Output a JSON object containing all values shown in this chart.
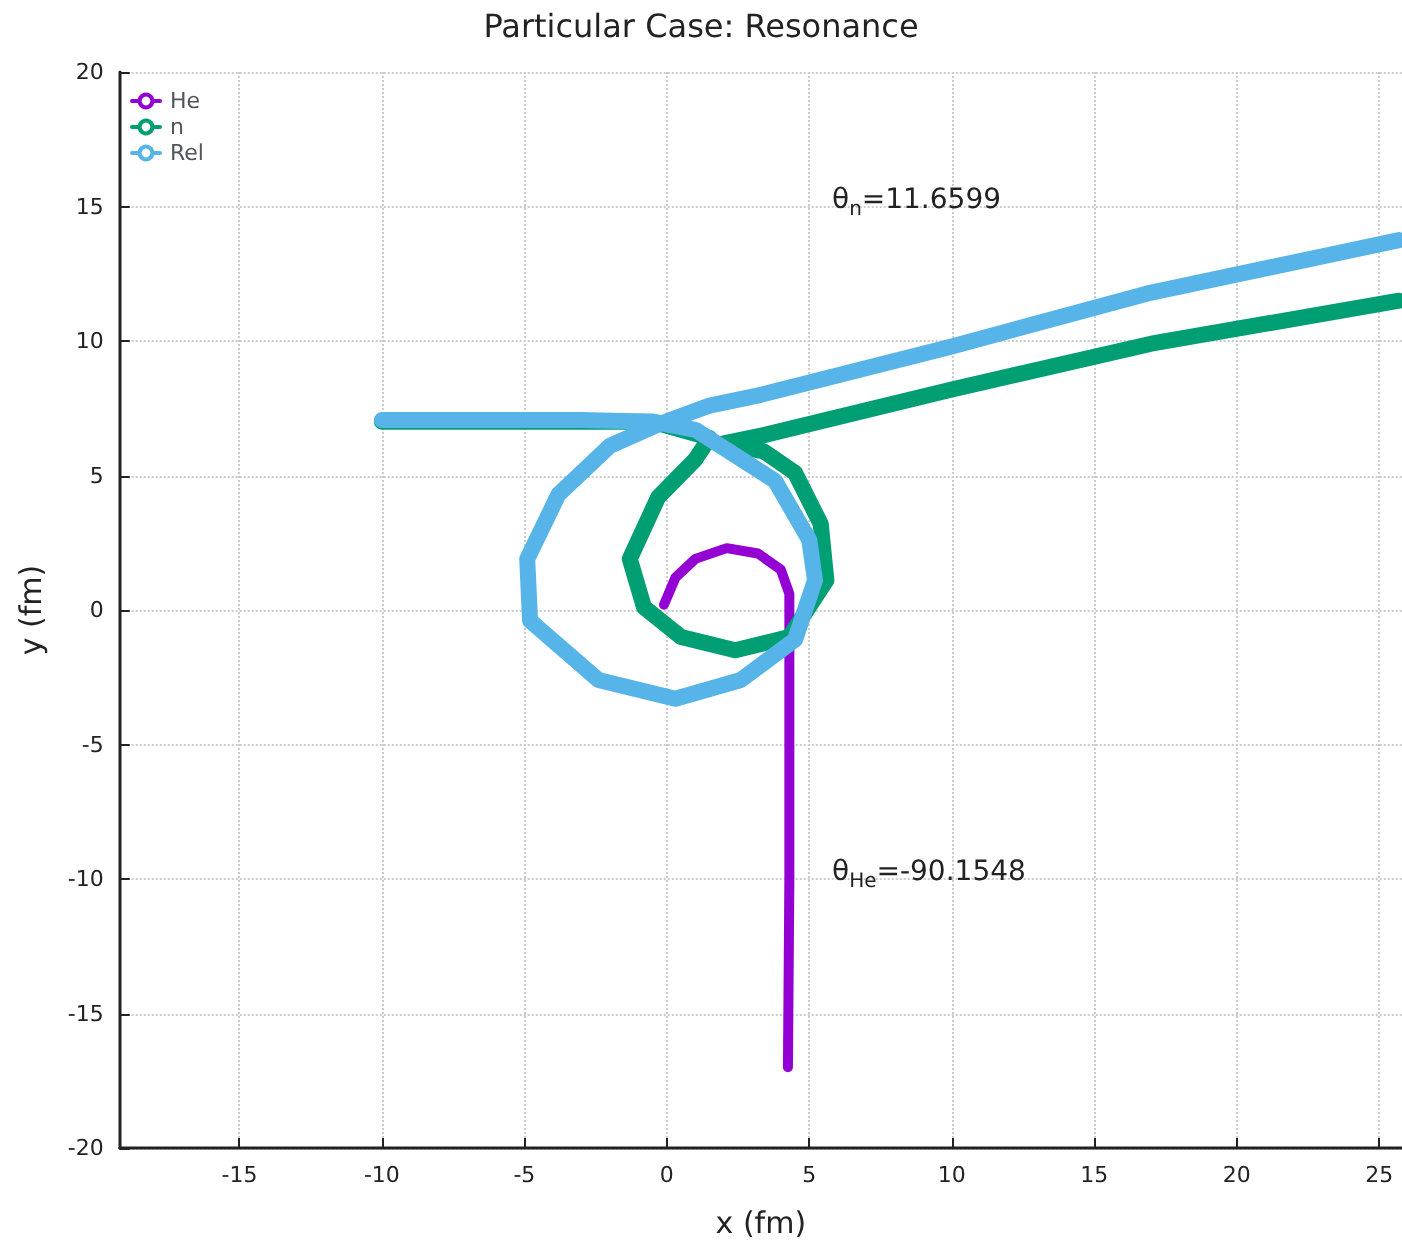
{
  "chart_data": {
    "type": "line",
    "title": "Particular Case: Resonance",
    "xlabel": "x (fm)",
    "ylabel": "y (fm)",
    "xlim": [
      -19.2,
      25.8
    ],
    "ylim": [
      -20,
      20
    ],
    "xticks": [
      -15,
      -10,
      -5,
      0,
      5,
      10,
      15,
      20,
      25
    ],
    "yticks": [
      -20,
      -15,
      -10,
      -5,
      0,
      5,
      10,
      15,
      20
    ],
    "grid": true,
    "legend": "top left",
    "annotations": [
      "θ$_{n}$=11.6599",
      "θ$_{He}$=-90.1548"
    ],
    "series": [
      {
        "name": "He",
        "color": "#9400d3",
        "x": [
          -0.1,
          0.3,
          1.0,
          2.1,
          3.2,
          4.0,
          4.3,
          4.3,
          4.3,
          4.25
        ],
        "values": [
          0.2,
          1.2,
          1.9,
          2.3,
          2.1,
          1.5,
          0.6,
          -2,
          -10,
          -17
        ]
      },
      {
        "name": "n",
        "color": "#009e73",
        "x": [
          -10,
          -3,
          -0.5,
          1.5,
          1.0,
          -0.3,
          -1.3,
          -0.8,
          0.5,
          2.4,
          4.3,
          5.6,
          5.4,
          4.5,
          3.4,
          2.0,
          3.4,
          10,
          17,
          25.7
        ],
        "values": [
          7,
          7,
          7,
          6.4,
          5.6,
          4.2,
          1.9,
          0.1,
          -1.0,
          -1.5,
          -1.0,
          1.1,
          3.2,
          5.1,
          5.9,
          6.2,
          6.5,
          8.2,
          9.9,
          11.5
        ]
      },
      {
        "name": "Rel",
        "color": "#56b4e9",
        "x": [
          -10,
          -3,
          -0.5,
          1.0,
          3.8,
          5.0,
          5.2,
          4.5,
          2.6,
          0.3,
          -2.4,
          -4.8,
          -4.9,
          -3.8,
          -2.0,
          -0.3,
          1.5,
          3.3,
          10,
          17,
          25.7
        ],
        "values": [
          7.06,
          7.06,
          7.0,
          6.7,
          4.8,
          2.6,
          1.1,
          -1.1,
          -2.6,
          -3.3,
          -2.6,
          -0.4,
          1.9,
          4.3,
          6.1,
          6.9,
          7.6,
          8.0,
          9.8,
          11.8,
          13.75
        ]
      }
    ]
  }
}
